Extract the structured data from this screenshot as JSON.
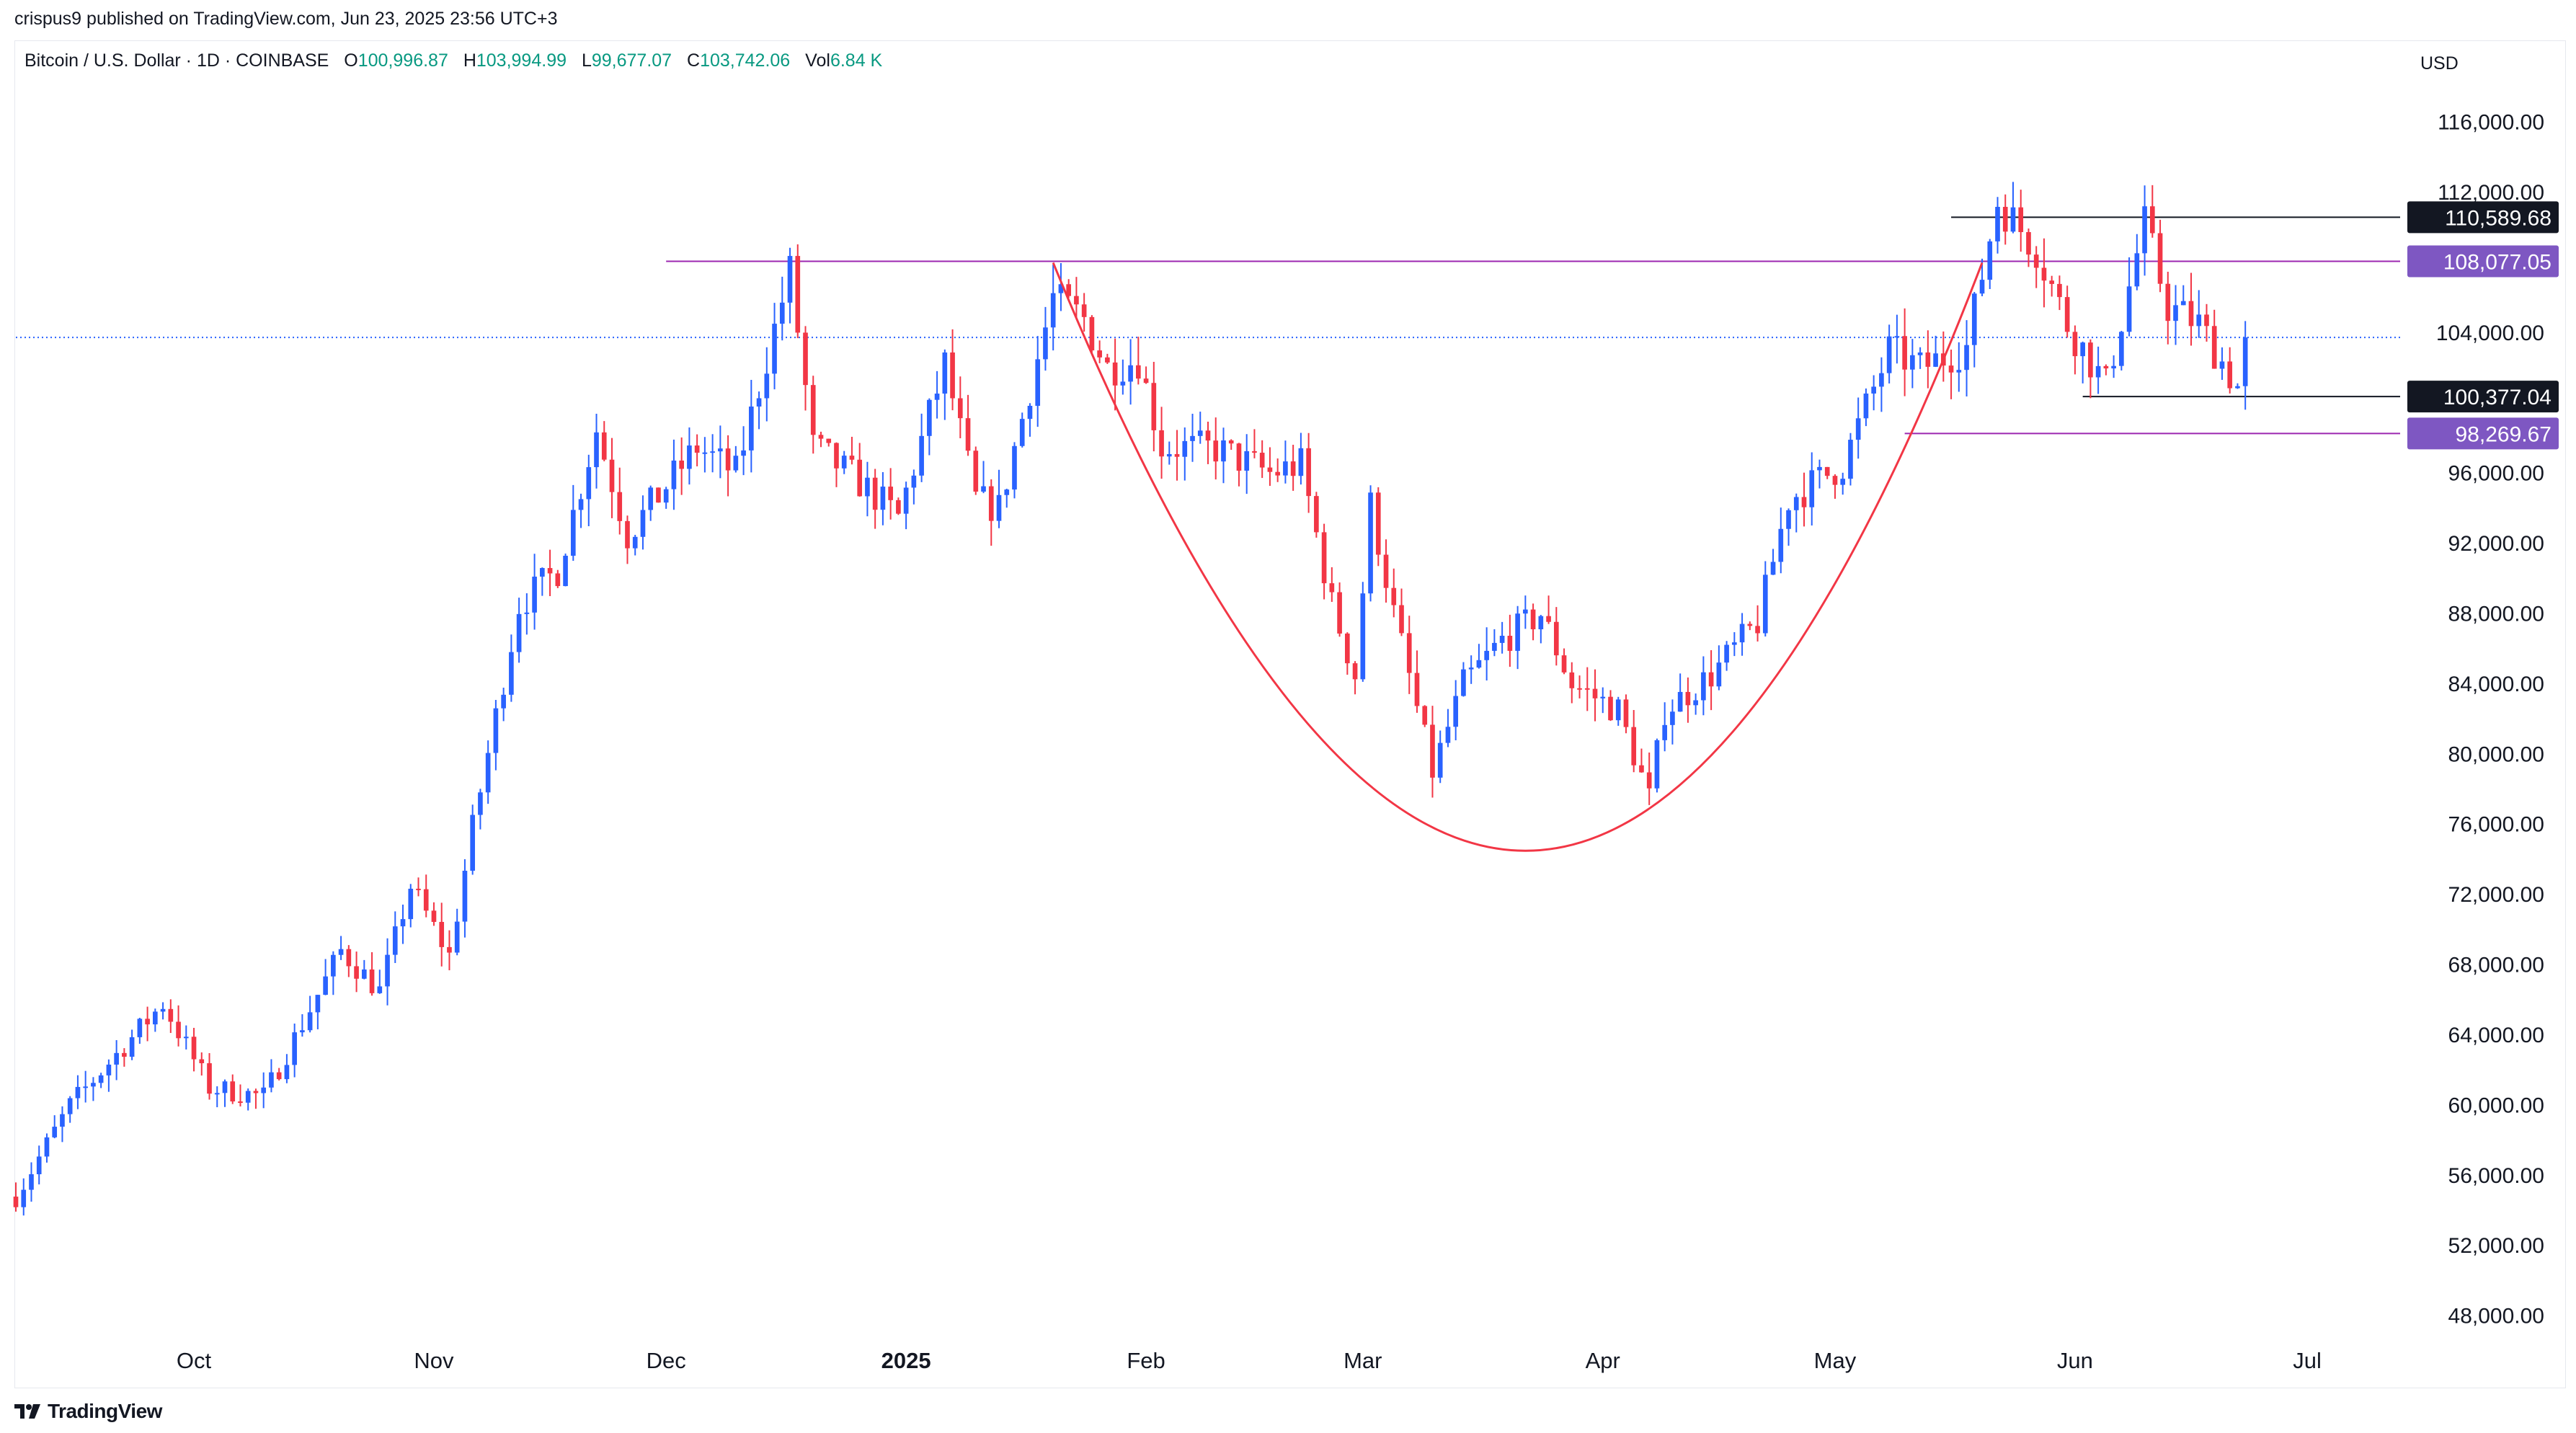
{
  "header": {
    "published_text": "crispus9 published on TradingView.com, Jun 23, 2025 23:56 UTC+3",
    "symbol": "Bitcoin / U.S. Dollar · 1D · COINBASE",
    "open_label": "O",
    "open_value": "100,996.87",
    "high_label": "H",
    "high_value": "103,994.99",
    "low_label": "L",
    "low_value": "99,677.07",
    "close_label": "C",
    "close_value": "103,742.06",
    "vol_label": "Vol",
    "vol_value": "6.84 K"
  },
  "footer": {
    "brand": "TradingView"
  },
  "colors": {
    "up": "#2962ff",
    "down": "#f23645",
    "cup": "#f23645",
    "resistance": "#9c27b0",
    "label_purple": "#7e57c2",
    "label_black": "#131722",
    "current_price_line": "#2962ff",
    "axis_text": "#131722"
  },
  "chart_data": {
    "type": "candlestick",
    "currency": "USD",
    "y_ticks": [
      "116,000.00",
      "112,000.00",
      "104,000.00",
      "96,000.00",
      "92,000.00",
      "88,000.00",
      "84,000.00",
      "80,000.00",
      "76,000.00",
      "72,000.00",
      "68,000.00",
      "64,000.00",
      "60,000.00",
      "56,000.00",
      "52,000.00",
      "48,000.00"
    ],
    "y_tick_values": [
      116000,
      112000,
      104000,
      96000,
      92000,
      88000,
      84000,
      80000,
      76000,
      72000,
      68000,
      64000,
      60000,
      56000,
      52000,
      48000
    ],
    "ylim": [
      47000,
      120500
    ],
    "x_labels": [
      {
        "date": "2024-10-01",
        "text": "Oct",
        "bold": false
      },
      {
        "date": "2024-11-01",
        "text": "Nov",
        "bold": false
      },
      {
        "date": "2024-12-01",
        "text": "Dec",
        "bold": false
      },
      {
        "date": "2025-01-01",
        "text": "2025",
        "bold": true
      },
      {
        "date": "2025-02-01",
        "text": "Feb",
        "bold": false
      },
      {
        "date": "2025-03-01",
        "text": "Mar",
        "bold": false
      },
      {
        "date": "2025-04-01",
        "text": "Apr",
        "bold": false
      },
      {
        "date": "2025-05-01",
        "text": "May",
        "bold": false
      },
      {
        "date": "2025-06-01",
        "text": "Jun",
        "bold": false
      },
      {
        "date": "2025-07-01",
        "text": "Jul",
        "bold": false
      }
    ],
    "xlim": [
      "2024-09-08",
      "2025-07-13"
    ],
    "price_labels": [
      {
        "value": 110589.68,
        "text": "110,589.68",
        "style": "black"
      },
      {
        "value": 108077.05,
        "text": "108,077.05",
        "style": "purple"
      },
      {
        "value": 100377.04,
        "text": "100,377.04",
        "style": "black"
      },
      {
        "value": 98269.67,
        "text": "98,269.67",
        "style": "purple"
      }
    ],
    "current_price": 103742.06,
    "h_lines": [
      {
        "value": 108077.05,
        "from": "2024-12-01",
        "to": "2025-07-13",
        "color": "resistance"
      },
      {
        "value": 98269.67,
        "from": "2025-05-10",
        "to": "2025-07-13",
        "color": "resistance"
      },
      {
        "value": 110589.68,
        "from": "2025-05-16",
        "to": "2025-07-13",
        "color": "black"
      },
      {
        "value": 100377.04,
        "from": "2025-06-02",
        "to": "2025-07-13",
        "color": "black"
      }
    ],
    "cup_curve": {
      "start": [
        "2025-01-20",
        108000
      ],
      "bottom": [
        "2025-03-22",
        74500
      ],
      "end": [
        "2025-05-20",
        108000
      ]
    },
    "price_path": [
      [
        "2024-09-08",
        54800
      ],
      [
        "2024-09-15",
        60000
      ],
      [
        "2024-09-27",
        65800
      ],
      [
        "2024-10-03",
        61000
      ],
      [
        "2024-10-10",
        60500
      ],
      [
        "2024-10-20",
        68800
      ],
      [
        "2024-10-25",
        66500
      ],
      [
        "2024-10-29",
        72500
      ],
      [
        "2024-11-03",
        68500
      ],
      [
        "2024-11-06",
        75800
      ],
      [
        "2024-11-12",
        88500
      ],
      [
        "2024-11-17",
        90500
      ],
      [
        "2024-11-22",
        98500
      ],
      [
        "2024-11-26",
        92500
      ],
      [
        "2024-12-05",
        97500
      ],
      [
        "2024-12-10",
        96000
      ],
      [
        "2024-12-17",
        107500
      ],
      [
        "2024-12-20",
        97500
      ],
      [
        "2024-12-26",
        95500
      ],
      [
        "2024-12-31",
        93500
      ],
      [
        "2025-01-06",
        102200
      ],
      [
        "2025-01-10",
        94500
      ],
      [
        "2025-01-13",
        94000
      ],
      [
        "2025-01-20",
        106000
      ],
      [
        "2025-01-24",
        104800
      ],
      [
        "2025-01-27",
        102000
      ],
      [
        "2025-01-31",
        102500
      ],
      [
        "2025-02-03",
        97500
      ],
      [
        "2025-02-10",
        97400
      ],
      [
        "2025-02-17",
        96000
      ],
      [
        "2025-02-21",
        96500
      ],
      [
        "2025-02-25",
        88500
      ],
      [
        "2025-02-28",
        84500
      ],
      [
        "2025-03-02",
        94200
      ],
      [
        "2025-03-05",
        88000
      ],
      [
        "2025-03-10",
        79000
      ],
      [
        "2025-03-14",
        84000
      ],
      [
        "2025-03-19",
        86500
      ],
      [
        "2025-03-24",
        88000
      ],
      [
        "2025-03-28",
        84000
      ],
      [
        "2025-04-03",
        82500
      ],
      [
        "2025-04-07",
        77500
      ],
      [
        "2025-04-09",
        82500
      ],
      [
        "2025-04-15",
        84500
      ],
      [
        "2025-04-21",
        87500
      ],
      [
        "2025-04-25",
        94500
      ],
      [
        "2025-05-02",
        96500
      ],
      [
        "2025-05-08",
        103000
      ],
      [
        "2025-05-12",
        102000
      ],
      [
        "2025-05-18",
        103200
      ],
      [
        "2025-05-22",
        111500
      ],
      [
        "2025-05-27",
        108800
      ],
      [
        "2025-05-31",
        104500
      ],
      [
        "2025-06-05",
        101000
      ],
      [
        "2025-06-09",
        108500
      ],
      [
        "2025-06-10",
        110200
      ],
      [
        "2025-06-13",
        105500
      ],
      [
        "2025-06-17",
        104500
      ],
      [
        "2025-06-22",
        100900
      ],
      [
        "2025-06-23",
        103742
      ]
    ]
  }
}
